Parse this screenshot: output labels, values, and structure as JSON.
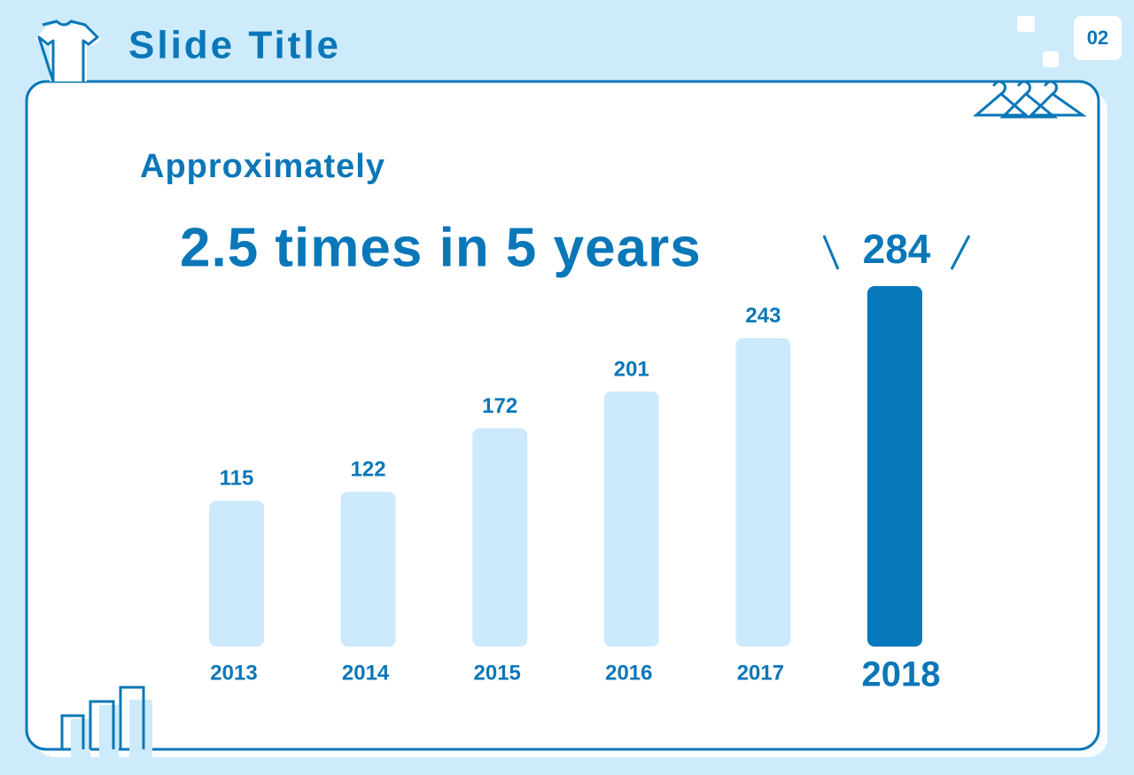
{
  "header": {
    "title": "Slide Title",
    "page_number": "02"
  },
  "subtitle": "Approximately",
  "headline": "2.5 times in 5 years",
  "chart_data": {
    "type": "bar",
    "categories": [
      "2013",
      "2014",
      "2015",
      "2016",
      "2017",
      "2018"
    ],
    "values": [
      115,
      122,
      172,
      201,
      243,
      284
    ],
    "colors": [
      "#cdeafc",
      "#cdeafc",
      "#cdeafc",
      "#cdeafc",
      "#cdeafc",
      "#0878bd"
    ]
  }
}
